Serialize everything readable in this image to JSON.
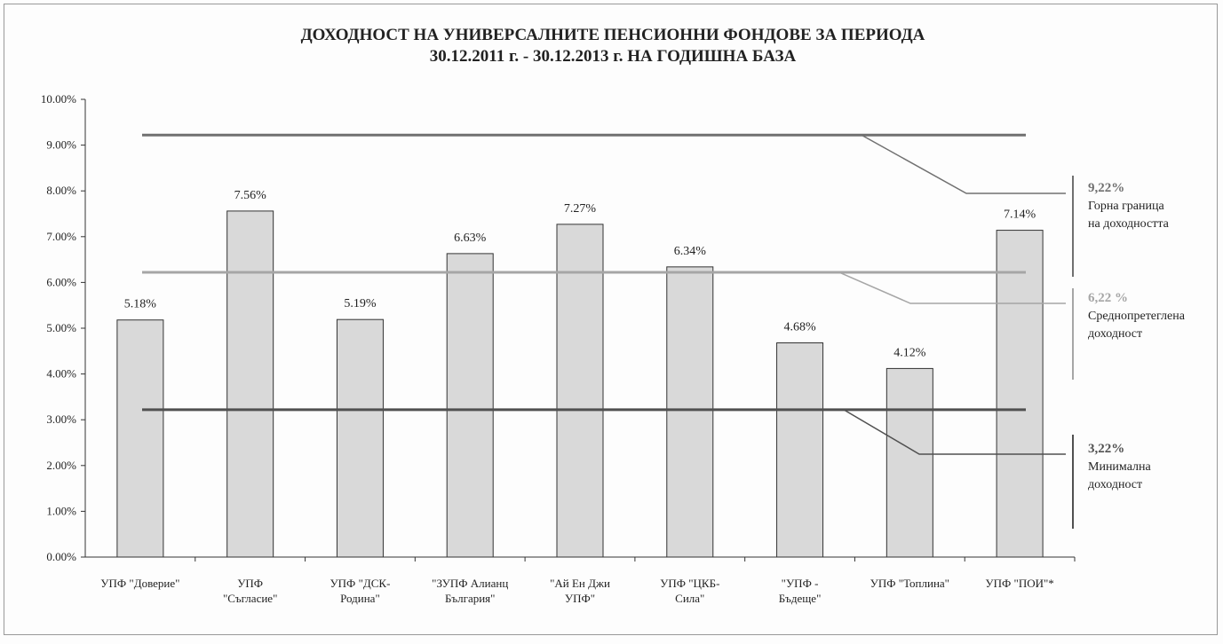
{
  "chart_data": {
    "type": "bar",
    "title_line1": "ДОХОДНОСТ НА УНИВЕРСАЛНИТЕ ПЕНСИОННИ ФОНДОВЕ ЗА ПЕРИОДА",
    "title_line2": "30.12.2011 г. - 30.12.2013 г. НА ГОДИШНА БАЗА",
    "categories": [
      [
        "УПФ \"Доверие\""
      ],
      [
        "УПФ",
        "\"Съгласие\""
      ],
      [
        "УПФ \"ДСК-",
        "Родина\""
      ],
      [
        "\"ЗУПФ Алианц",
        "България\""
      ],
      [
        "\"Ай Ен Джи",
        "УПФ\""
      ],
      [
        "УПФ \"ЦКБ-",
        "Сила\""
      ],
      [
        "\"УПФ -",
        "Бъдеще\""
      ],
      [
        "УПФ \"Топлина\""
      ],
      [
        "УПФ  \"ПОИ\"*"
      ]
    ],
    "values": [
      5.18,
      7.56,
      5.19,
      6.63,
      7.27,
      6.34,
      4.68,
      4.12,
      7.14
    ],
    "value_labels": [
      "5.18%",
      "7.56%",
      "5.19%",
      "6.63%",
      "7.27%",
      "6.34%",
      "4.68%",
      "4.12%",
      "7.14%"
    ],
    "ylim": [
      0,
      10
    ],
    "yticks": [
      "0.00%",
      "1.00%",
      "2.00%",
      "3.00%",
      "4.00%",
      "5.00%",
      "6.00%",
      "7.00%",
      "8.00%",
      "9.00%",
      "10.00%"
    ],
    "grid": false,
    "reference_lines": [
      {
        "value": 9.22,
        "pct_label": "9,22%",
        "text": [
          "Горна граница",
          "на доходността"
        ],
        "color": "#707070"
      },
      {
        "value": 6.22,
        "pct_label": "6,22 %",
        "text": [
          "Среднопретеглена",
          "доходност"
        ],
        "color": "#a6a6a6"
      },
      {
        "value": 3.22,
        "pct_label": "3,22%",
        "text": [
          "Минимална",
          "доходност"
        ],
        "color": "#505050"
      }
    ],
    "colors": {
      "bar_fill": "#d9d9d9",
      "bar_stroke": "#333333"
    }
  }
}
